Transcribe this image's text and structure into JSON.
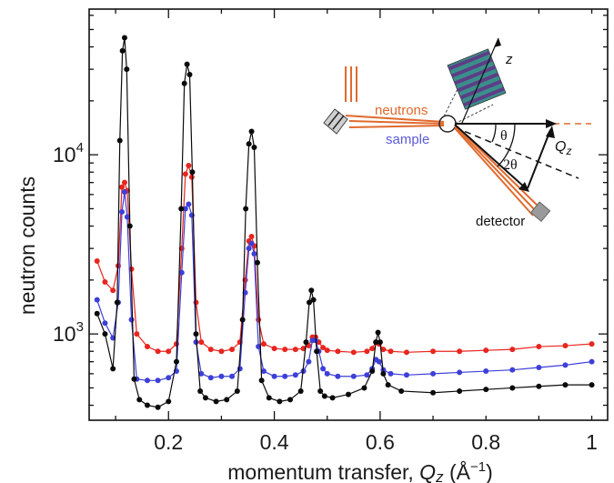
{
  "chart_data": {
    "type": "scatter",
    "title": "",
    "xlabel": "momentum transfer, Qz (Å⁻¹)",
    "ylabel": "neutron counts",
    "xlim": [
      0.05,
      1.03
    ],
    "ylim": [
      330,
      65000
    ],
    "y_scale": "log",
    "grid": false,
    "legend": "none",
    "x_ticks": [
      {
        "value": 0.2,
        "label": "0.2"
      },
      {
        "value": 0.4,
        "label": "0.4"
      },
      {
        "value": 0.6,
        "label": "0.6"
      },
      {
        "value": 0.8,
        "label": "0.8"
      },
      {
        "value": 1.0,
        "label": "1"
      }
    ],
    "y_ticks": [
      {
        "value": 1000,
        "base": "10",
        "exp": "3"
      },
      {
        "value": 10000,
        "base": "10",
        "exp": "4"
      }
    ],
    "series": [
      {
        "color": "#e8251f",
        "x": [
          0.065,
          0.08,
          0.095,
          0.105,
          0.112,
          0.117,
          0.122,
          0.13,
          0.14,
          0.16,
          0.18,
          0.2,
          0.215,
          0.225,
          0.232,
          0.238,
          0.244,
          0.252,
          0.262,
          0.28,
          0.3,
          0.32,
          0.335,
          0.345,
          0.352,
          0.357,
          0.362,
          0.37,
          0.38,
          0.4,
          0.42,
          0.44,
          0.455,
          0.465,
          0.472,
          0.478,
          0.484,
          0.492,
          0.5,
          0.52,
          0.55,
          0.575,
          0.585,
          0.592,
          0.598,
          0.606,
          0.62,
          0.65,
          0.7,
          0.75,
          0.8,
          0.85,
          0.9,
          0.95,
          1.0
        ],
        "y": [
          2550,
          1950,
          1750,
          2400,
          6600,
          7000,
          6300,
          2300,
          1000,
          850,
          800,
          800,
          880,
          3000,
          7800,
          8700,
          7500,
          1500,
          900,
          820,
          800,
          820,
          900,
          2000,
          3300,
          3500,
          3100,
          1200,
          880,
          830,
          820,
          820,
          830,
          860,
          960,
          960,
          900,
          840,
          810,
          800,
          790,
          800,
          830,
          900,
          880,
          820,
          800,
          790,
          800,
          800,
          810,
          820,
          850,
          860,
          880
        ]
      },
      {
        "color": "#3d3fd8",
        "x": [
          0.065,
          0.08,
          0.095,
          0.105,
          0.112,
          0.117,
          0.122,
          0.13,
          0.14,
          0.16,
          0.18,
          0.2,
          0.215,
          0.225,
          0.232,
          0.238,
          0.244,
          0.252,
          0.262,
          0.28,
          0.3,
          0.32,
          0.335,
          0.345,
          0.352,
          0.357,
          0.362,
          0.37,
          0.38,
          0.4,
          0.42,
          0.44,
          0.455,
          0.465,
          0.472,
          0.478,
          0.484,
          0.492,
          0.5,
          0.52,
          0.55,
          0.575,
          0.585,
          0.592,
          0.598,
          0.606,
          0.62,
          0.65,
          0.7,
          0.75,
          0.8,
          0.85,
          0.9,
          0.95,
          1.0
        ],
        "y": [
          1550,
          1150,
          950,
          1500,
          4800,
          6200,
          4500,
          1200,
          560,
          550,
          550,
          570,
          620,
          2200,
          5000,
          5300,
          4600,
          900,
          600,
          570,
          580,
          580,
          640,
          1700,
          3000,
          3200,
          2800,
          850,
          620,
          580,
          580,
          590,
          620,
          700,
          920,
          920,
          800,
          640,
          600,
          580,
          580,
          590,
          640,
          720,
          700,
          630,
          600,
          590,
          600,
          610,
          620,
          630,
          650,
          670,
          700
        ]
      },
      {
        "color": "#0a0a0a",
        "x": [
          0.065,
          0.08,
          0.095,
          0.103,
          0.108,
          0.113,
          0.117,
          0.121,
          0.127,
          0.135,
          0.145,
          0.16,
          0.18,
          0.2,
          0.215,
          0.224,
          0.23,
          0.235,
          0.24,
          0.245,
          0.252,
          0.26,
          0.27,
          0.29,
          0.31,
          0.33,
          0.34,
          0.346,
          0.352,
          0.357,
          0.362,
          0.368,
          0.376,
          0.39,
          0.41,
          0.43,
          0.45,
          0.46,
          0.466,
          0.47,
          0.474,
          0.48,
          0.487,
          0.495,
          0.51,
          0.54,
          0.57,
          0.585,
          0.592,
          0.596,
          0.6,
          0.606,
          0.615,
          0.64,
          0.7,
          0.75,
          0.8,
          0.85,
          0.9,
          0.95,
          1.0
        ],
        "y": [
          1300,
          1000,
          640,
          1500,
          12000,
          38000,
          45000,
          30000,
          4000,
          560,
          430,
          400,
          390,
          420,
          700,
          5000,
          25000,
          32000,
          28000,
          8000,
          1000,
          480,
          440,
          420,
          430,
          480,
          1200,
          5000,
          11500,
          13500,
          11000,
          2500,
          550,
          440,
          420,
          430,
          480,
          900,
          1500,
          1750,
          1550,
          800,
          480,
          450,
          440,
          460,
          500,
          620,
          900,
          1020,
          900,
          600,
          520,
          480,
          470,
          480,
          490,
          500,
          510,
          520,
          520
        ]
      }
    ]
  },
  "inset": {
    "neutrons_label": "neutrons",
    "sample_label": "sample",
    "detector_label": "detector",
    "z_label": "z",
    "theta_label": "θ",
    "two_theta_label": "2θ",
    "q_label": "Q",
    "q_sub": "z",
    "beam_color": "#e06a2e",
    "sample_color": "#5b5bd6",
    "layer_color_a": "#3a8f8a",
    "layer_color_b": "#5d3e86"
  },
  "axis_title_x_parts": {
    "before": "momentum transfer, ",
    "q": "Q",
    "z": "z",
    "unit": " (Å",
    "unit_exp": "−1",
    "close": ")"
  }
}
